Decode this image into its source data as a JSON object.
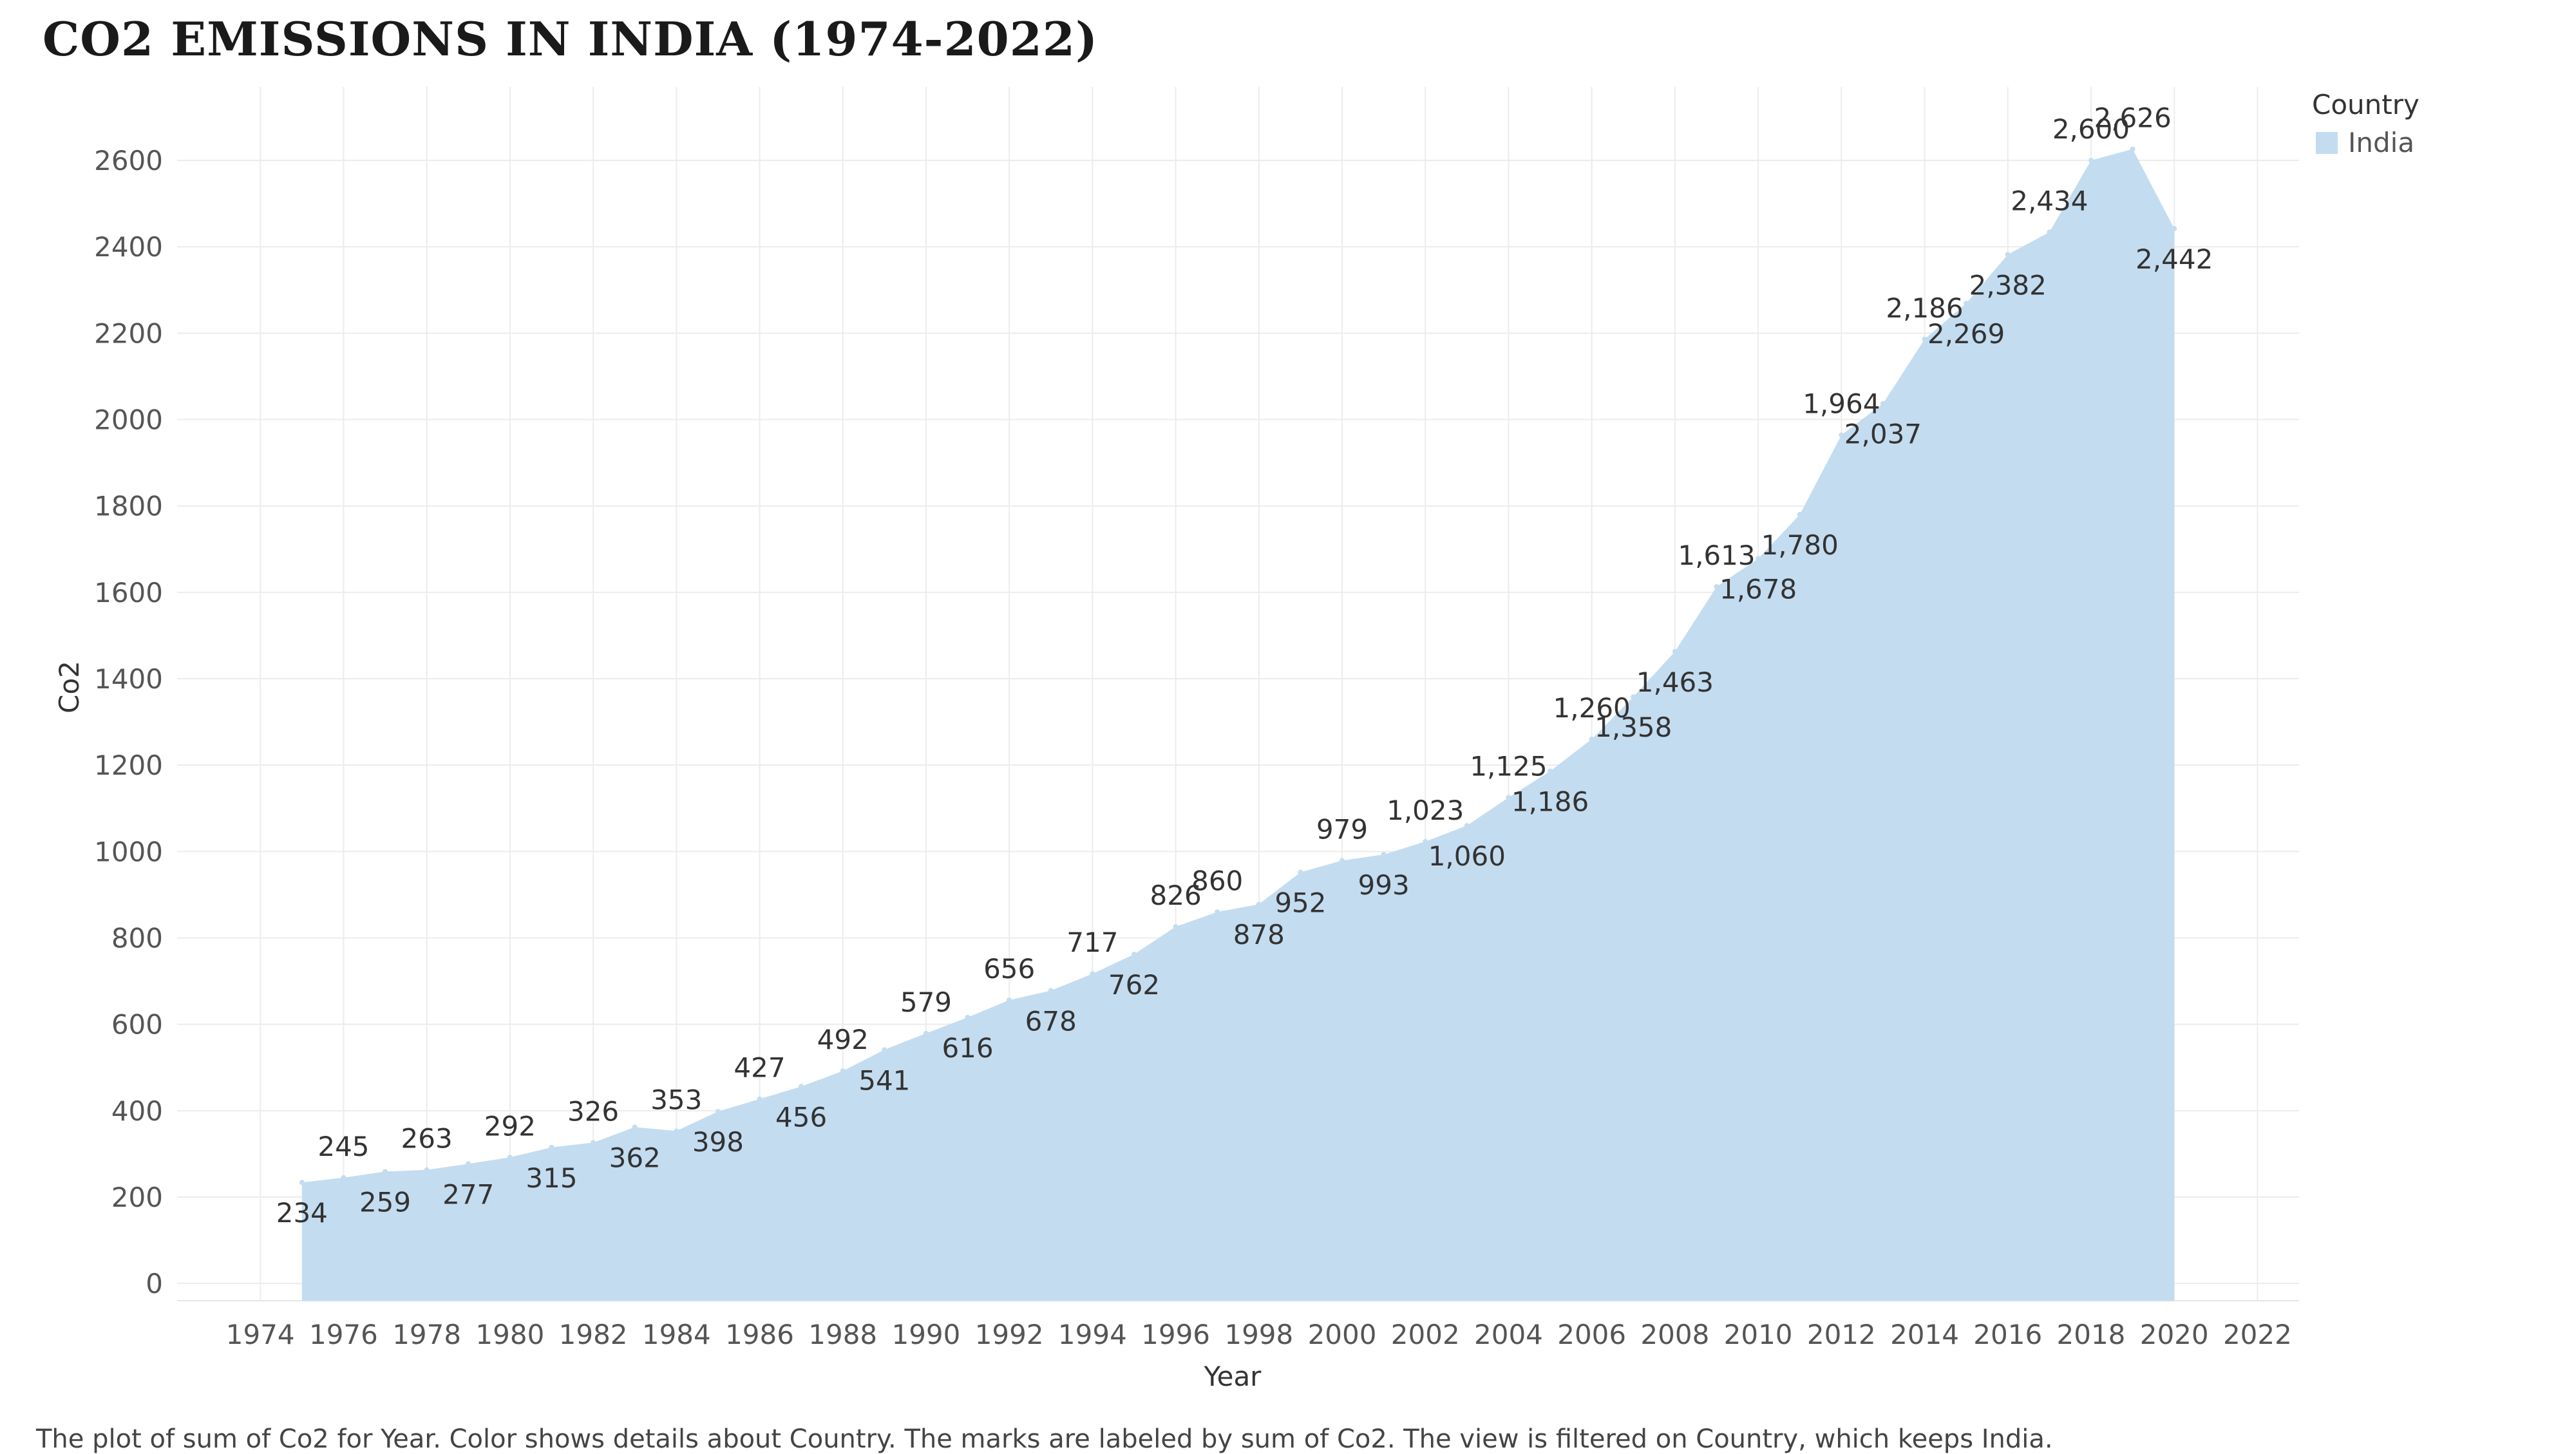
{
  "title": "CO2 EMISSIONS IN INDIA (1974-2022)",
  "caption": "The plot of sum of Co2 for Year.  Color shows details about Country.  The marks are labeled by sum of Co2. The view is filtered on Country, which keeps India.",
  "legend": {
    "title": "Country",
    "label": "India",
    "color": "#c3dcf0"
  },
  "chart_data": {
    "type": "area",
    "xlabel": "Year",
    "ylabel": "Co2",
    "xlim": [
      1972,
      2023
    ],
    "ylim": [
      -40,
      2770
    ],
    "x_ticks": [
      1974,
      1976,
      1978,
      1980,
      1982,
      1984,
      1986,
      1988,
      1990,
      1992,
      1994,
      1996,
      1998,
      2000,
      2002,
      2004,
      2006,
      2008,
      2010,
      2012,
      2014,
      2016,
      2018,
      2020,
      2022
    ],
    "y_ticks": [
      0,
      200,
      400,
      600,
      800,
      1000,
      1200,
      1400,
      1600,
      1800,
      2000,
      2200,
      2400,
      2600
    ],
    "grid": true,
    "legend_position": "top-right",
    "series": [
      {
        "name": "India",
        "color": "#c3dcf0",
        "x": [
          1975,
          1976,
          1977,
          1978,
          1979,
          1980,
          1981,
          1982,
          1983,
          1984,
          1985,
          1986,
          1987,
          1988,
          1989,
          1990,
          1991,
          1992,
          1993,
          1994,
          1995,
          1996,
          1997,
          1998,
          1999,
          2000,
          2001,
          2002,
          2003,
          2004,
          2005,
          2006,
          2007,
          2008,
          2009,
          2010,
          2011,
          2012,
          2013,
          2014,
          2015,
          2016,
          2017,
          2018,
          2019,
          2020
        ],
        "values": [
          234,
          245,
          259,
          263,
          277,
          292,
          315,
          326,
          362,
          353,
          398,
          427,
          456,
          492,
          541,
          579,
          616,
          656,
          678,
          717,
          762,
          826,
          860,
          878,
          952,
          979,
          993,
          1023,
          1060,
          1125,
          1186,
          1260,
          1358,
          1463,
          1613,
          1678,
          1780,
          1964,
          2037,
          2186,
          2269,
          2382,
          2434,
          2600,
          2626,
          2442
        ],
        "label_side": [
          "below",
          "above",
          "below",
          "above",
          "below",
          "above",
          "below",
          "above",
          "below",
          "above",
          "below",
          "above",
          "below",
          "above",
          "below",
          "above",
          "below",
          "above",
          "below",
          "above",
          "below",
          "above",
          "above",
          "below",
          "below",
          "above",
          "below",
          "above",
          "below",
          "above",
          "below",
          "above",
          "below",
          "below",
          "above",
          "below",
          "below",
          "above",
          "below",
          "above",
          "below",
          "below",
          "above",
          "above",
          "above",
          "below"
        ]
      }
    ]
  }
}
